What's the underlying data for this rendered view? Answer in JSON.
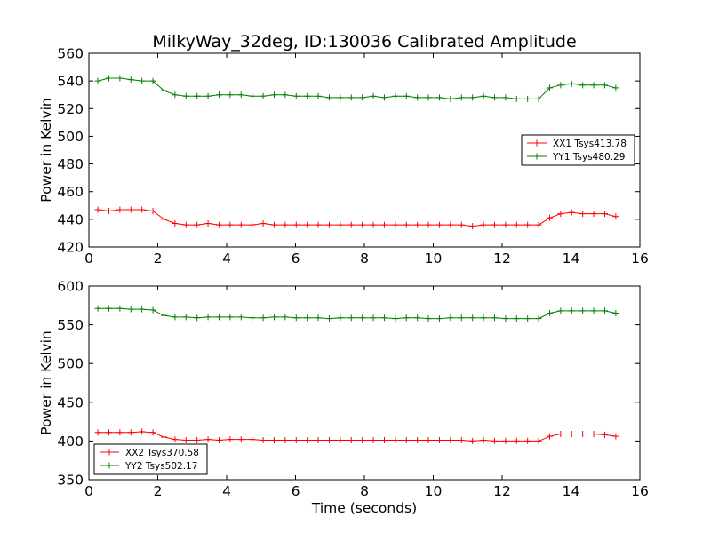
{
  "chart_data": [
    {
      "type": "line",
      "title": "MilkyWay_32deg, ID:130036 Calibrated Amplitude",
      "xlabel": "",
      "ylabel": "Power in Kelvin",
      "xlim": [
        0,
        16
      ],
      "ylim": [
        420,
        560
      ],
      "xticks": [
        "0",
        "2",
        "4",
        "6",
        "8",
        "10",
        "12",
        "14",
        "16"
      ],
      "yticks": [
        "420",
        "440",
        "460",
        "480",
        "500",
        "520",
        "540",
        "560"
      ],
      "legend_position": "center-right",
      "series": [
        {
          "name": "XX1 Tsys413.78",
          "color": "#ff0000",
          "x": [
            0.26,
            0.58,
            0.9,
            1.22,
            1.54,
            1.86,
            2.18,
            2.5,
            2.82,
            3.14,
            3.46,
            3.78,
            4.1,
            4.42,
            4.74,
            5.06,
            5.38,
            5.7,
            6.02,
            6.34,
            6.66,
            6.98,
            7.3,
            7.62,
            7.94,
            8.26,
            8.58,
            8.9,
            9.22,
            9.54,
            9.86,
            10.18,
            10.5,
            10.82,
            11.14,
            11.46,
            11.78,
            12.1,
            12.42,
            12.74,
            13.06,
            13.38,
            13.7,
            14.02,
            14.34,
            14.66,
            14.98,
            15.3
          ],
          "values": [
            447,
            446,
            447,
            447,
            447,
            446,
            440,
            437,
            436,
            436,
            437,
            436,
            436,
            436,
            436,
            437,
            436,
            436,
            436,
            436,
            436,
            436,
            436,
            436,
            436,
            436,
            436,
            436,
            436,
            436,
            436,
            436,
            436,
            436,
            435,
            436,
            436,
            436,
            436,
            436,
            436,
            441,
            444,
            445,
            444,
            444,
            444,
            442
          ]
        },
        {
          "name": "YY1 Tsys480.29",
          "color": "#008000",
          "x": [
            0.26,
            0.58,
            0.9,
            1.22,
            1.54,
            1.86,
            2.18,
            2.5,
            2.82,
            3.14,
            3.46,
            3.78,
            4.1,
            4.42,
            4.74,
            5.06,
            5.38,
            5.7,
            6.02,
            6.34,
            6.66,
            6.98,
            7.3,
            7.62,
            7.94,
            8.26,
            8.58,
            8.9,
            9.22,
            9.54,
            9.86,
            10.18,
            10.5,
            10.82,
            11.14,
            11.46,
            11.78,
            12.1,
            12.42,
            12.74,
            13.06,
            13.38,
            13.7,
            14.02,
            14.34,
            14.66,
            14.98,
            15.3
          ],
          "values": [
            540,
            542,
            542,
            541,
            540,
            540,
            533,
            530,
            529,
            529,
            529,
            530,
            530,
            530,
            529,
            529,
            530,
            530,
            529,
            529,
            529,
            528,
            528,
            528,
            528,
            529,
            528,
            529,
            529,
            528,
            528,
            528,
            527,
            528,
            528,
            529,
            528,
            528,
            527,
            527,
            527,
            535,
            537,
            538,
            537,
            537,
            537,
            535
          ]
        }
      ]
    },
    {
      "type": "line",
      "title": "",
      "xlabel": "Time (seconds)",
      "ylabel": "Power in Kelvin",
      "xlim": [
        0,
        16
      ],
      "ylim": [
        350,
        600
      ],
      "xticks": [
        "0",
        "2",
        "4",
        "6",
        "8",
        "10",
        "12",
        "14",
        "16"
      ],
      "yticks": [
        "350",
        "400",
        "450",
        "500",
        "550",
        "600"
      ],
      "legend_position": "lower-left",
      "series": [
        {
          "name": "XX2 Tsys370.58",
          "color": "#ff0000",
          "x": [
            0.26,
            0.58,
            0.9,
            1.22,
            1.54,
            1.86,
            2.18,
            2.5,
            2.82,
            3.14,
            3.46,
            3.78,
            4.1,
            4.42,
            4.74,
            5.06,
            5.38,
            5.7,
            6.02,
            6.34,
            6.66,
            6.98,
            7.3,
            7.62,
            7.94,
            8.26,
            8.58,
            8.9,
            9.22,
            9.54,
            9.86,
            10.18,
            10.5,
            10.82,
            11.14,
            11.46,
            11.78,
            12.1,
            12.42,
            12.74,
            13.06,
            13.38,
            13.7,
            14.02,
            14.34,
            14.66,
            14.98,
            15.3
          ],
          "values": [
            411,
            411,
            411,
            411,
            412,
            411,
            405,
            402,
            401,
            401,
            402,
            401,
            402,
            402,
            402,
            401,
            401,
            401,
            401,
            401,
            401,
            401,
            401,
            401,
            401,
            401,
            401,
            401,
            401,
            401,
            401,
            401,
            401,
            401,
            400,
            401,
            400,
            400,
            400,
            400,
            400,
            406,
            409,
            409,
            409,
            409,
            408,
            406
          ]
        },
        {
          "name": "YY2 Tsys502.17",
          "color": "#008000",
          "x": [
            0.26,
            0.58,
            0.9,
            1.22,
            1.54,
            1.86,
            2.18,
            2.5,
            2.82,
            3.14,
            3.46,
            3.78,
            4.1,
            4.42,
            4.74,
            5.06,
            5.38,
            5.7,
            6.02,
            6.34,
            6.66,
            6.98,
            7.3,
            7.62,
            7.94,
            8.26,
            8.58,
            8.9,
            9.22,
            9.54,
            9.86,
            10.18,
            10.5,
            10.82,
            11.14,
            11.46,
            11.78,
            12.1,
            12.42,
            12.74,
            13.06,
            13.38,
            13.7,
            14.02,
            14.34,
            14.66,
            14.98,
            15.3
          ],
          "values": [
            571,
            571,
            571,
            570,
            570,
            569,
            562,
            560,
            560,
            559,
            560,
            560,
            560,
            560,
            559,
            559,
            560,
            560,
            559,
            559,
            559,
            558,
            559,
            559,
            559,
            559,
            559,
            558,
            559,
            559,
            558,
            558,
            559,
            559,
            559,
            559,
            559,
            558,
            558,
            558,
            558,
            565,
            568,
            568,
            568,
            568,
            568,
            565
          ]
        }
      ]
    }
  ]
}
